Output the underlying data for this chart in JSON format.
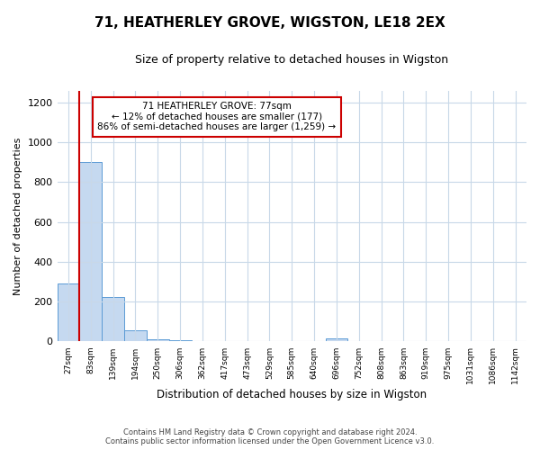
{
  "title": "71, HEATHERLEY GROVE, WIGSTON, LE18 2EX",
  "subtitle": "Size of property relative to detached houses in Wigston",
  "xlabel": "Distribution of detached houses by size in Wigston",
  "ylabel": "Number of detached properties",
  "bar_color": "#C5D9F0",
  "bar_edge_color": "#5B9BD5",
  "categories": [
    "27sqm",
    "83sqm",
    "139sqm",
    "194sqm",
    "250sqm",
    "306sqm",
    "362sqm",
    "417sqm",
    "473sqm",
    "529sqm",
    "585sqm",
    "640sqm",
    "696sqm",
    "752sqm",
    "808sqm",
    "863sqm",
    "919sqm",
    "975sqm",
    "1031sqm",
    "1086sqm",
    "1142sqm"
  ],
  "values": [
    290,
    900,
    225,
    55,
    10,
    5,
    3,
    2,
    1,
    0,
    0,
    0,
    15,
    0,
    0,
    0,
    0,
    0,
    0,
    0,
    0
  ],
  "ylim": [
    0,
    1260
  ],
  "yticks": [
    0,
    200,
    400,
    600,
    800,
    1000,
    1200
  ],
  "property_line_color": "#CC0000",
  "annotation_line1": "71 HEATHERLEY GROVE: 77sqm",
  "annotation_line2": "← 12% of detached houses are smaller (177)",
  "annotation_line3": "86% of semi-detached houses are larger (1,259) →",
  "annotation_box_color": "#CC0000",
  "footer_line1": "Contains HM Land Registry data © Crown copyright and database right 2024.",
  "footer_line2": "Contains public sector information licensed under the Open Government Licence v3.0.",
  "background_color": "#FFFFFF",
  "grid_color": "#C8D8E8"
}
